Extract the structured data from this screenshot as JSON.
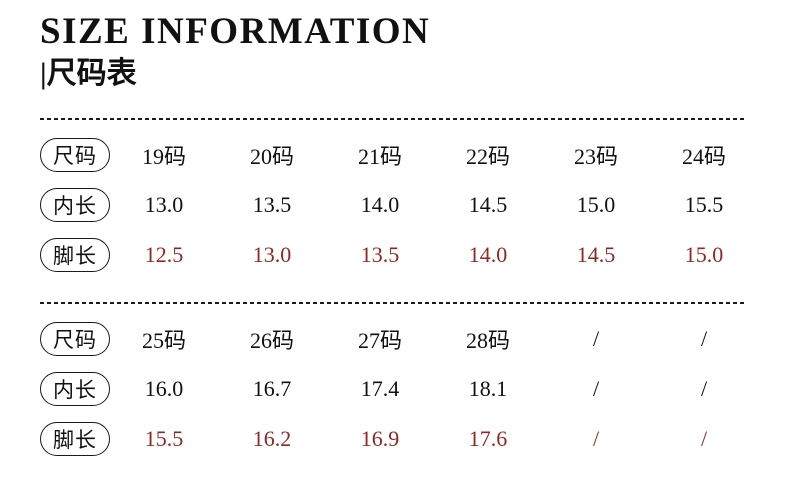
{
  "header": {
    "title": "SIZE INFORMATION",
    "subtitle": "|尺码表"
  },
  "colors": {
    "text": "#111111",
    "foot_length_red": "#8f2724",
    "background": "#ffffff"
  },
  "tables": [
    {
      "rows": [
        {
          "label": "尺码",
          "values": [
            "19码",
            "20码",
            "21码",
            "22码",
            "23码",
            "24码"
          ]
        },
        {
          "label": "内长",
          "values": [
            "13.0",
            "13.5",
            "14.0",
            "14.5",
            "15.0",
            "15.5"
          ]
        },
        {
          "label": "脚长",
          "values": [
            "12.5",
            "13.0",
            "13.5",
            "14.0",
            "14.5",
            "15.0"
          ]
        }
      ]
    },
    {
      "rows": [
        {
          "label": "尺码",
          "values": [
            "25码",
            "26码",
            "27码",
            "28码",
            "/",
            "/"
          ]
        },
        {
          "label": "内长",
          "values": [
            "16.0",
            "16.7",
            "17.4",
            "18.1",
            "/",
            "/"
          ]
        },
        {
          "label": "脚长",
          "values": [
            "15.5",
            "16.2",
            "16.9",
            "17.6",
            "/",
            "/"
          ]
        }
      ]
    }
  ]
}
